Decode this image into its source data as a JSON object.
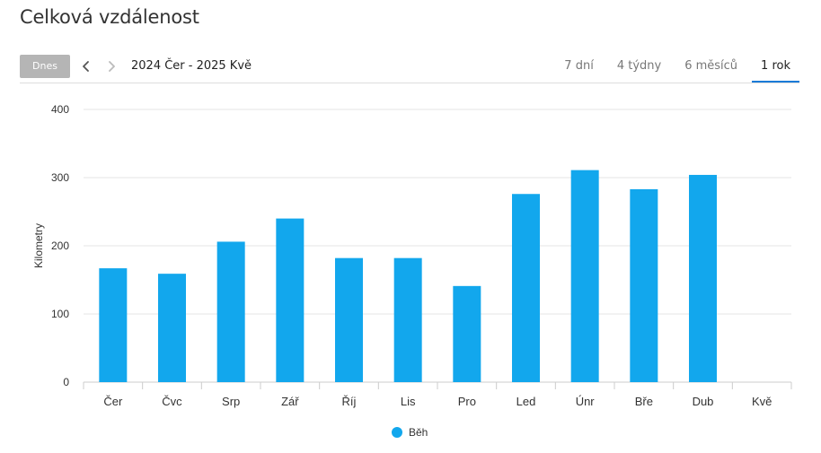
{
  "header": {
    "title": "Celková vzdálenost"
  },
  "toolbar": {
    "today_label": "Dnes",
    "prev_icon": "chevron-left-icon",
    "next_icon": "chevron-right-icon",
    "range_label": "2024 Čer - 2025 Kvě",
    "tabs": [
      {
        "label": "7 dní",
        "active": false
      },
      {
        "label": "4 týdny",
        "active": false
      },
      {
        "label": "6 měsíců",
        "active": false
      },
      {
        "label": "1 rok",
        "active": true
      }
    ]
  },
  "chart_data": {
    "type": "bar",
    "title": "",
    "xlabel": "",
    "ylabel": "Kilometry",
    "ylim": [
      0,
      400
    ],
    "yticks": [
      0,
      100,
      200,
      300,
      400
    ],
    "categories": [
      "Čer",
      "Čvc",
      "Srp",
      "Zář",
      "Říj",
      "Lis",
      "Pro",
      "Led",
      "Únr",
      "Bře",
      "Dub",
      "Kvě"
    ],
    "series": [
      {
        "name": "Běh",
        "color": "#12a7ed",
        "values": [
          167,
          159,
          206,
          240,
          182,
          182,
          141,
          276,
          311,
          283,
          304,
          0
        ]
      }
    ],
    "grid": true,
    "legend_position": "bottom-center"
  }
}
